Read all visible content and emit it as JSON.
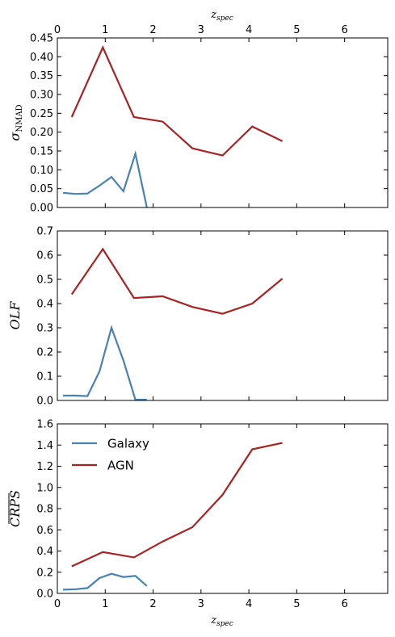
{
  "figure": {
    "top_xlabel": "z",
    "top_xlabel_sub": "spec",
    "bottom_xlabel": "z",
    "bottom_xlabel_sub": "spec"
  },
  "colors": {
    "galaxy": "#4682b4",
    "agn": "#aa2222"
  },
  "legend": {
    "placement": "upper-left",
    "entries": [
      "Galaxy",
      "AGN"
    ]
  },
  "chart_data": [
    {
      "type": "line",
      "ylabel": "σ",
      "ylabel_sub": "NMAD",
      "xlim": [
        0,
        6.9
      ],
      "ylim": [
        0,
        0.45
      ],
      "xticks": [
        0,
        1,
        2,
        3,
        4,
        5,
        6
      ],
      "yticks": [
        0.0,
        0.05,
        0.1,
        0.15,
        0.2,
        0.25,
        0.3,
        0.35,
        0.4,
        0.45
      ],
      "ytick_labels": [
        "0.00",
        "0.05",
        "0.10",
        "0.15",
        "0.20",
        "0.25",
        "0.30",
        "0.35",
        "0.40",
        "0.45"
      ],
      "series": [
        {
          "name": "Galaxy",
          "x": [
            0.12,
            0.38,
            0.63,
            0.88,
            1.13,
            1.38,
            1.63,
            1.87
          ],
          "y": [
            0.039,
            0.036,
            0.037,
            0.058,
            0.081,
            0.043,
            0.143,
            0.0
          ]
        },
        {
          "name": "AGN",
          "x": [
            0.3,
            0.95,
            1.6,
            2.2,
            2.82,
            3.45,
            4.07,
            4.7
          ],
          "y": [
            0.24,
            0.425,
            0.24,
            0.228,
            0.157,
            0.138,
            0.215,
            0.176
          ]
        }
      ]
    },
    {
      "type": "line",
      "ylabel": "OLF",
      "xlim": [
        0,
        6.9
      ],
      "ylim": [
        0,
        0.7
      ],
      "xticks": [
        0,
        1,
        2,
        3,
        4,
        5,
        6
      ],
      "yticks": [
        0.0,
        0.1,
        0.2,
        0.3,
        0.4,
        0.5,
        0.6,
        0.7
      ],
      "ytick_labels": [
        "0.0",
        "0.1",
        "0.2",
        "0.3",
        "0.4",
        "0.5",
        "0.6",
        "0.7"
      ],
      "series": [
        {
          "name": "Galaxy",
          "x": [
            0.12,
            0.38,
            0.63,
            0.88,
            1.13,
            1.38,
            1.63,
            1.87
          ],
          "y": [
            0.02,
            0.02,
            0.018,
            0.12,
            0.3,
            0.165,
            0.003,
            0.003
          ]
        },
        {
          "name": "AGN",
          "x": [
            0.3,
            0.95,
            1.6,
            2.2,
            2.82,
            3.45,
            4.07,
            4.7
          ],
          "y": [
            0.438,
            0.625,
            0.423,
            0.43,
            0.386,
            0.358,
            0.4,
            0.503
          ]
        }
      ]
    },
    {
      "type": "line",
      "ylabel": "CRPS",
      "ylabel_overline": true,
      "xlim": [
        0,
        6.9
      ],
      "ylim": [
        0,
        1.6
      ],
      "xticks": [
        0,
        1,
        2,
        3,
        4,
        5,
        6
      ],
      "yticks": [
        0.0,
        0.2,
        0.4,
        0.6,
        0.8,
        1.0,
        1.2,
        1.4,
        1.6
      ],
      "ytick_labels": [
        "0.0",
        "0.2",
        "0.4",
        "0.6",
        "0.8",
        "1.0",
        "1.2",
        "1.4",
        "1.6"
      ],
      "series": [
        {
          "name": "Galaxy",
          "x": [
            0.12,
            0.38,
            0.63,
            0.88,
            1.13,
            1.38,
            1.63,
            1.87
          ],
          "y": [
            0.035,
            0.04,
            0.05,
            0.145,
            0.185,
            0.155,
            0.165,
            0.07
          ]
        },
        {
          "name": "AGN",
          "x": [
            0.3,
            0.95,
            1.6,
            2.2,
            2.82,
            3.45,
            4.07,
            4.7
          ],
          "y": [
            0.255,
            0.39,
            0.34,
            0.49,
            0.625,
            0.93,
            1.36,
            1.42
          ]
        }
      ]
    }
  ]
}
